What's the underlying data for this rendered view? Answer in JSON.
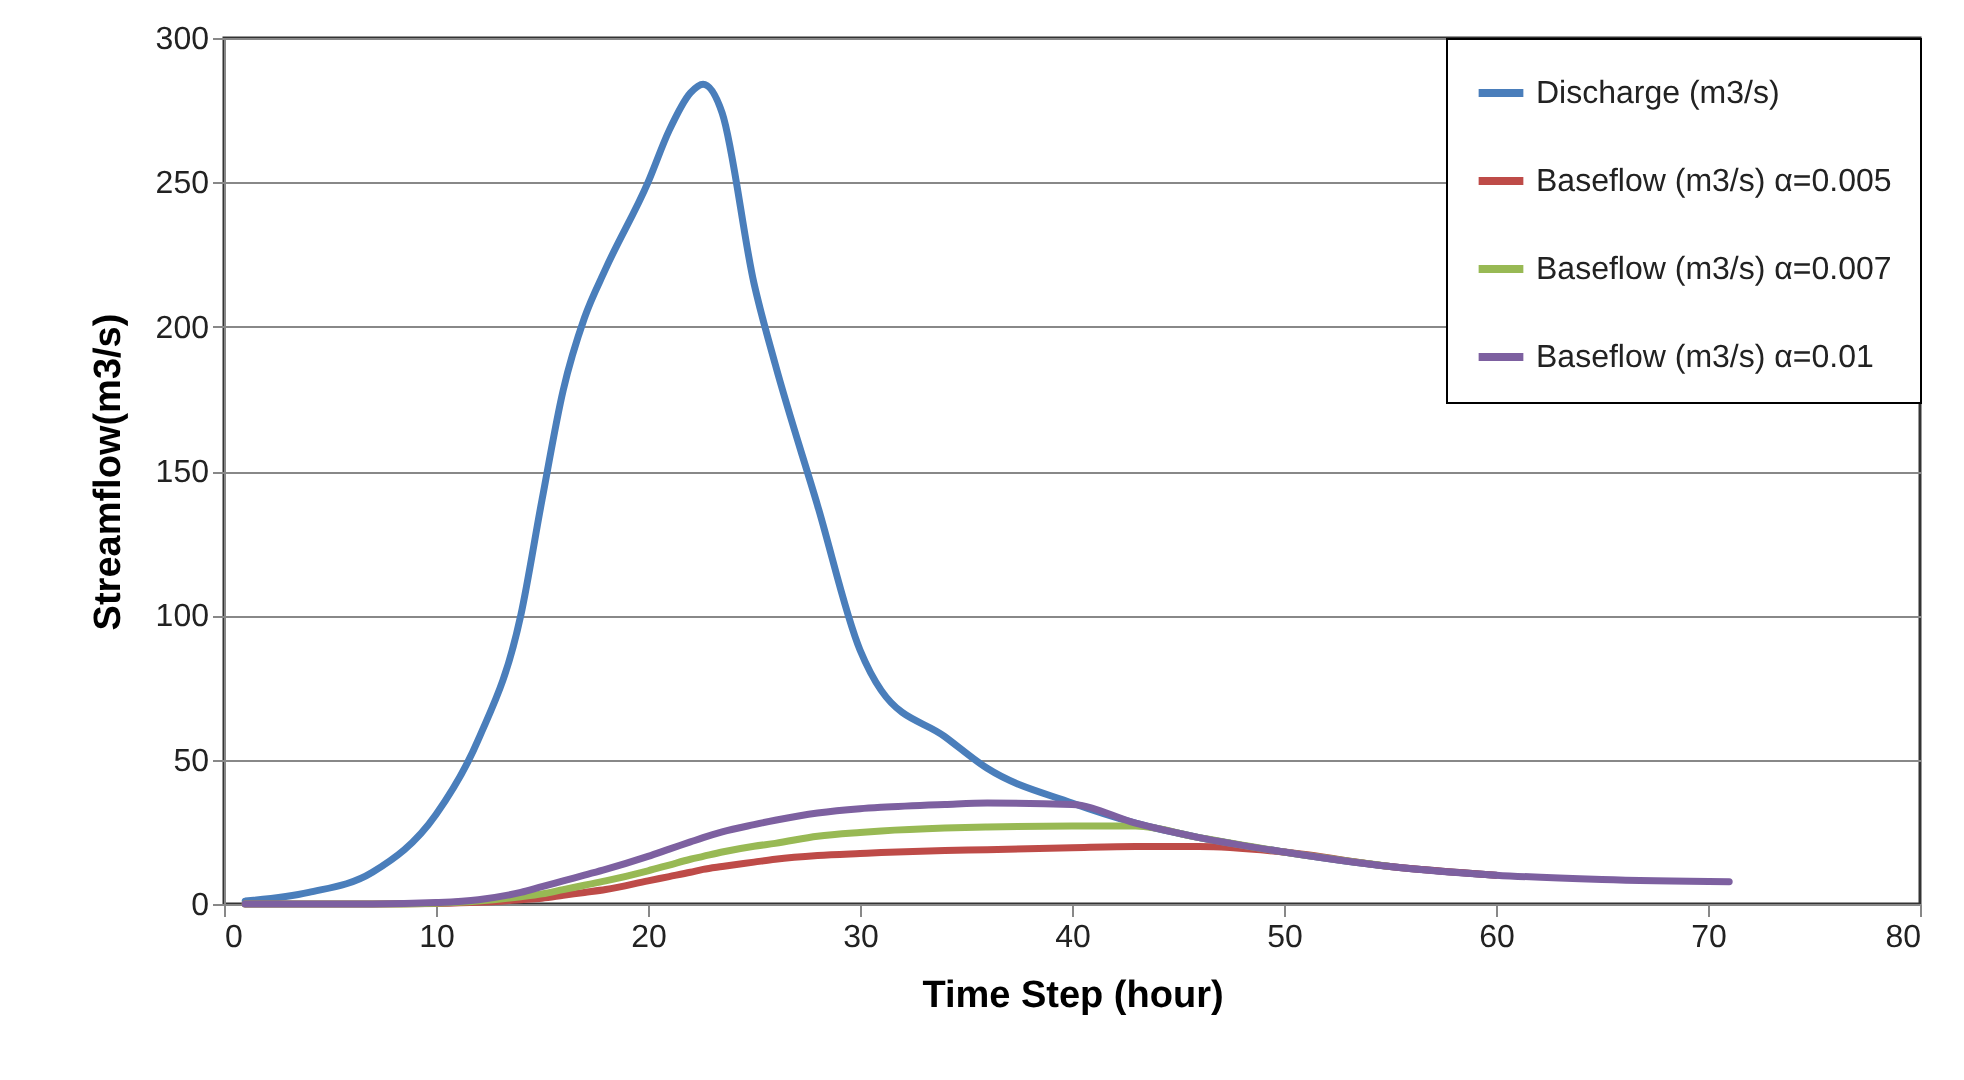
{
  "chart_data": {
    "type": "line",
    "xlabel": "Time Step (hour)",
    "ylabel": "Streamflow(m3/s)",
    "x": [
      1,
      4,
      7,
      10,
      12,
      14,
      15,
      16,
      17,
      18,
      20,
      21,
      22,
      22.6,
      23.5,
      25,
      26,
      28,
      30,
      31,
      34,
      36,
      40,
      43,
      46,
      50,
      55,
      60,
      65,
      71
    ],
    "series": [
      {
        "name": "Discharge (m3/s)",
        "color": "#4a7ebb",
        "values": [
          1,
          4,
          11,
          31,
          57,
          100,
          140,
          178,
          203,
          220,
          250,
          268,
          281,
          284,
          274,
          215,
          187,
          138,
          88,
          74,
          58,
          47,
          35,
          28,
          23,
          18,
          13,
          10,
          null,
          null
        ]
      },
      {
        "name": "Baseflow (m3/s) α=0.005",
        "color": "#be4b48",
        "values": [
          0,
          0,
          0,
          0.2,
          0.6,
          1.5,
          2,
          3,
          4,
          5,
          8,
          9.5,
          11,
          12,
          13,
          14.5,
          15.5,
          16.8,
          17.5,
          17.8,
          18.5,
          18.8,
          19.5,
          19.9,
          19.9,
          18,
          13,
          10,
          null,
          null
        ]
      },
      {
        "name": "Baseflow (m3/s) α=0.007",
        "color": "#98b954",
        "values": [
          0,
          0,
          0,
          0.3,
          1,
          2.5,
          3.5,
          5,
          6.5,
          8,
          11.5,
          13.5,
          15.5,
          16.5,
          18,
          20,
          21,
          23.5,
          24.8,
          25.3,
          26.3,
          26.7,
          27,
          27,
          23,
          18,
          13,
          null,
          null,
          null
        ]
      },
      {
        "name": "Baseflow (m3/s) α=0.01",
        "color": "#7d60a0",
        "values": [
          0,
          0,
          0,
          0.5,
          1.5,
          4,
          6,
          8,
          10,
          12,
          16.5,
          19,
          21.5,
          23,
          25,
          27.5,
          29,
          31.5,
          33,
          33.5,
          34.5,
          35,
          34.5,
          28,
          23,
          18,
          13,
          10,
          8.5,
          7.7
        ]
      }
    ],
    "xlim": [
      0,
      80
    ],
    "xticks": [
      0,
      10,
      20,
      30,
      40,
      50,
      60,
      70,
      80
    ],
    "ylim": [
      0,
      300
    ],
    "yticks": [
      0,
      50,
      100,
      150,
      200,
      250,
      300
    ],
    "grid": "y",
    "legend": "top right"
  }
}
